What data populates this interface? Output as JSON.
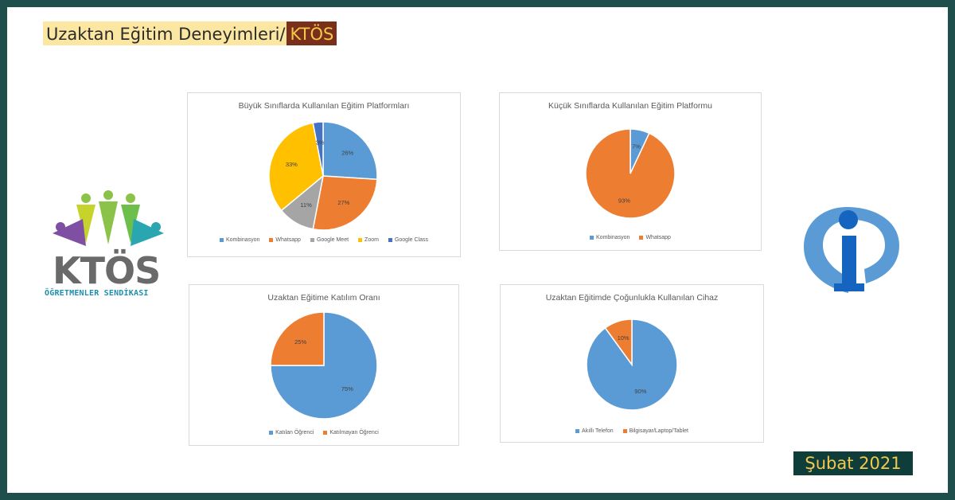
{
  "header": {
    "title": "Uzaktan Eğitim Deneyimleri/",
    "brand": "KTÖS"
  },
  "footer": {
    "date": "Şubat 2021"
  },
  "logo_left": {
    "word": "KTÖS",
    "subtitle": "ÖĞRETMENLER SENDİKASI"
  },
  "colors": {
    "frame": "#1f4f4c",
    "blue": "#5b9bd5",
    "orange": "#ed7d31",
    "gray": "#a5a5a5",
    "yellow": "#ffc000",
    "darkblue": "#4472c4",
    "title_highlight": "#fbe7a1",
    "brand_bg": "#7a2f1b",
    "brand_text": "#f3c84d"
  },
  "chart_data": [
    {
      "type": "pie",
      "title": "Büyük Sınıflarda Kullanılan Eğitim Platformları",
      "categories": [
        "Kombinasyon",
        "Whatsapp",
        "Google Meet",
        "Zoom",
        "Google Class"
      ],
      "values": [
        26,
        27,
        11,
        33,
        3
      ],
      "labels": [
        "26%",
        "27%",
        "11%",
        "33%",
        "3%"
      ],
      "colors": [
        "#5b9bd5",
        "#ed7d31",
        "#a5a5a5",
        "#ffc000",
        "#4472c4"
      ],
      "legend": "bottom"
    },
    {
      "type": "pie",
      "title": "Küçük Sınıflarda Kullanılan Eğitim Platformu",
      "categories": [
        "Kombinasyon",
        "Whatsapp"
      ],
      "values": [
        7,
        93
      ],
      "labels": [
        "7%",
        "93%"
      ],
      "colors": [
        "#5b9bd5",
        "#ed7d31"
      ],
      "legend": "bottom"
    },
    {
      "type": "pie",
      "title": "Uzaktan Eğitime Katılım Oranı",
      "categories": [
        "Katılan Öğrenci",
        "Katılmayan Öğrenci"
      ],
      "values": [
        75,
        25
      ],
      "labels": [
        "75%",
        "25%"
      ],
      "colors": [
        "#5b9bd5",
        "#ed7d31"
      ],
      "legend": "bottom"
    },
    {
      "type": "pie",
      "title": "Uzaktan Eğitimde Çoğunlukla Kullanılan Cihaz",
      "categories": [
        "Akıllı Telefon",
        "Bilgisayar/Laptop/Tablet"
      ],
      "values": [
        90,
        10
      ],
      "labels": [
        "90%",
        "10%"
      ],
      "colors": [
        "#5b9bd5",
        "#ed7d31"
      ],
      "legend": "bottom"
    }
  ]
}
